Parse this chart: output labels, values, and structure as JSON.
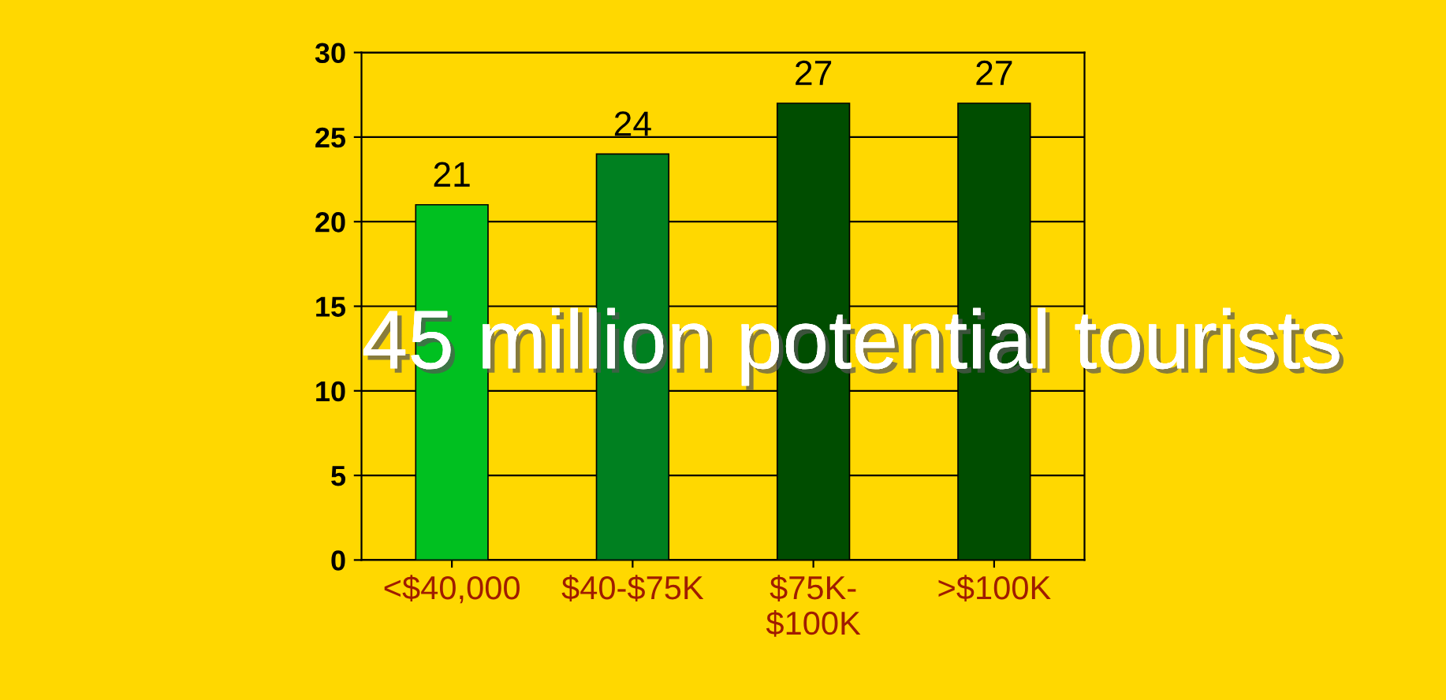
{
  "chart_data": {
    "type": "bar",
    "categories": [
      "<$40,000",
      "$40-$75K",
      "$75K-\n$100K",
      ">$100K"
    ],
    "values": [
      21,
      24,
      27,
      27
    ],
    "colors": [
      "#00c020",
      "#008020",
      "#004d00",
      "#004d00"
    ],
    "ylim": [
      0,
      30
    ],
    "yticks": [
      0,
      5,
      10,
      15,
      20,
      25,
      30
    ],
    "grid": "y",
    "data_labels": true,
    "annotations": [
      "45 million potential tourists"
    ]
  }
}
